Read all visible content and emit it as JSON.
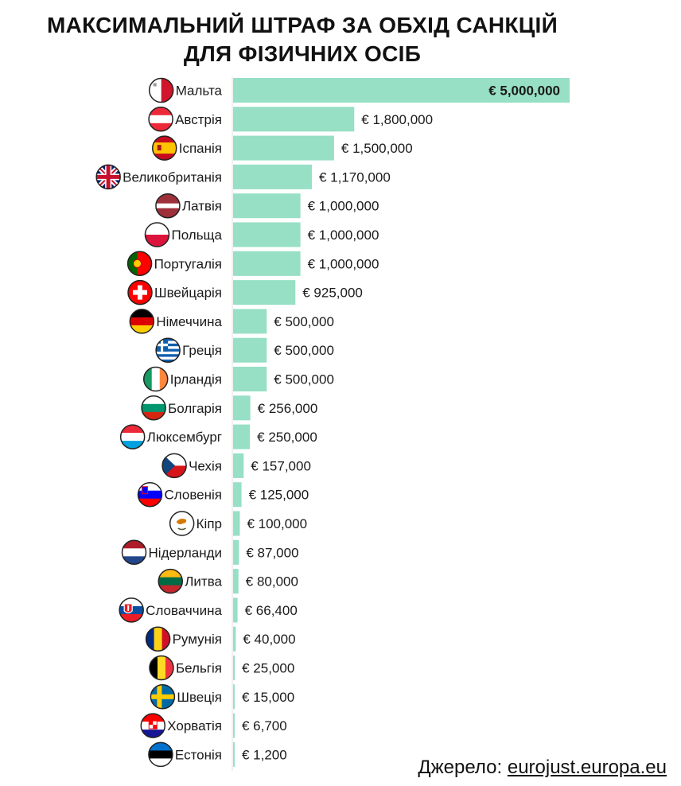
{
  "title_line1": "МАКСИМАЛЬНИЙ ШТРАФ ЗА ОБХІД САНКЦІЙ",
  "title_line2": "ДЛЯ ФІЗИЧНИХ ОСІБ",
  "source_label": "Джерело:",
  "source_link": "eurojust.europa.eu",
  "colors": {
    "bar": "#97dfc5",
    "text": "#1a1a1a"
  },
  "chart_data": {
    "type": "bar",
    "orientation": "horizontal",
    "title": "МАКСИМАЛЬНИЙ ШТРАФ ЗА ОБХІД САНКЦІЙ ДЛЯ ФІЗИЧНИХ ОСІБ",
    "categories": [
      "Мальта",
      "Австрія",
      "Іспанія",
      "Великобританія",
      "Латвія",
      "Польща",
      "Португалія",
      "Швейцарія",
      "Німеччина",
      "Греція",
      "Ірландія",
      "Болгарія",
      "Люксембург",
      "Чехія",
      "Словенія",
      "Кіпр",
      "Нідерланди",
      "Литва",
      "Словаччина",
      "Румунія",
      "Бельгія",
      "Швеція",
      "Хорватія",
      "Естонія"
    ],
    "values": [
      5000000,
      1800000,
      1500000,
      1170000,
      1000000,
      1000000,
      1000000,
      925000,
      500000,
      500000,
      500000,
      256000,
      250000,
      157000,
      125000,
      100000,
      87000,
      80000,
      66400,
      40000,
      25000,
      15000,
      6700,
      1200
    ],
    "value_labels": [
      "€ 5,000,000",
      "€ 1,800,000",
      "€ 1,500,000",
      "€ 1,170,000",
      "€ 1,000,000",
      "€ 1,000,000",
      "€ 1,000,000",
      "€ 925,000",
      "€ 500,000",
      "€ 500,000",
      "€ 500,000",
      "€ 256,000",
      "€ 250,000",
      "€ 157,000",
      "€ 125,000",
      "€ 100,000",
      "€ 87,000",
      "€ 80,000",
      "€ 66,400",
      "€ 40,000",
      "€ 25,000",
      "€ 15,000",
      "€ 6,700",
      "€ 1,200"
    ],
    "flag_icons": [
      "malta-flag-icon",
      "austria-flag-icon",
      "spain-flag-icon",
      "uk-flag-icon",
      "latvia-flag-icon",
      "poland-flag-icon",
      "portugal-flag-icon",
      "switzerland-flag-icon",
      "germany-flag-icon",
      "greece-flag-icon",
      "ireland-flag-icon",
      "bulgaria-flag-icon",
      "luxembourg-flag-icon",
      "czechia-flag-icon",
      "slovenia-flag-icon",
      "cyprus-flag-icon",
      "netherlands-flag-icon",
      "lithuania-flag-icon",
      "slovakia-flag-icon",
      "romania-flag-icon",
      "belgium-flag-icon",
      "sweden-flag-icon",
      "croatia-flag-icon",
      "estonia-flag-icon"
    ],
    "xlim": [
      0,
      5000000
    ],
    "grid": false,
    "legend": "none"
  }
}
